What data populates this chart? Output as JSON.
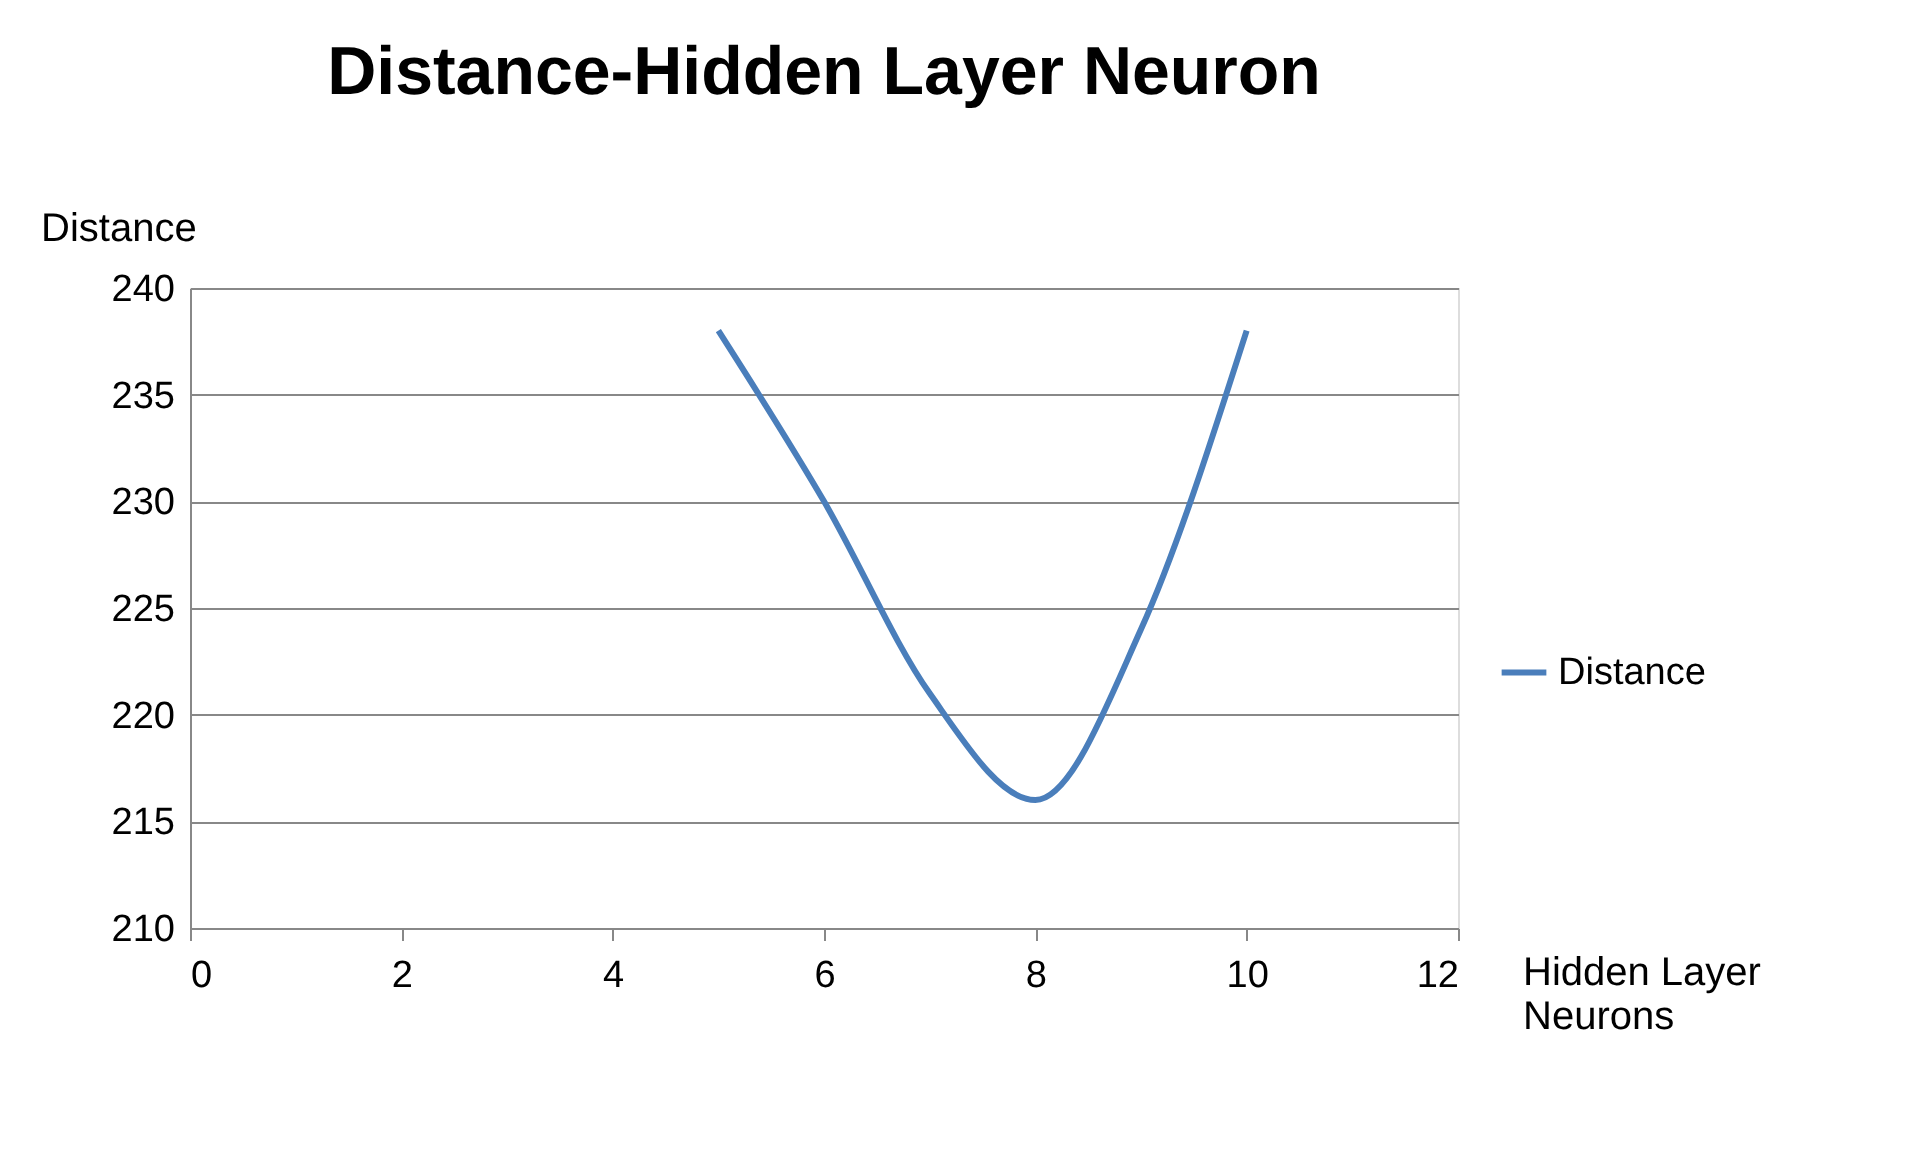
{
  "chart_data": {
    "type": "line",
    "title": "Distance-Hidden Layer Neuron",
    "xlabel": "Hidden Layer Neurons",
    "ylabel": "Distance",
    "x": [
      5,
      6,
      7,
      8,
      9,
      10
    ],
    "series": [
      {
        "name": "Distance",
        "color": "#4a7ebb",
        "values": [
          238,
          230,
          221,
          216,
          224,
          238
        ]
      }
    ],
    "xlim": [
      0,
      12
    ],
    "xticks": [
      0,
      2,
      4,
      6,
      8,
      10,
      12
    ],
    "ylim": [
      210,
      240
    ],
    "yticks": [
      210,
      215,
      220,
      225,
      230,
      235,
      240
    ],
    "grid": "y",
    "legend": "right",
    "marker": "none",
    "line_style": "solid"
  }
}
